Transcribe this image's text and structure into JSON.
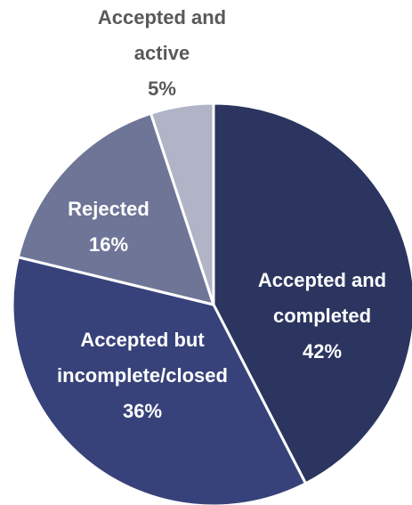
{
  "chart_data": {
    "type": "pie",
    "categories": [
      "Accepted and completed",
      "Accepted but incomplete/closed",
      "Rejected",
      "Accepted and active"
    ],
    "values": [
      42,
      36,
      16,
      5
    ],
    "value_labels": [
      "42%",
      "36%",
      "16%",
      "5%"
    ],
    "colors": [
      "#2b355f",
      "#38427a",
      "#6e7597",
      "#b1b4c7"
    ]
  }
}
